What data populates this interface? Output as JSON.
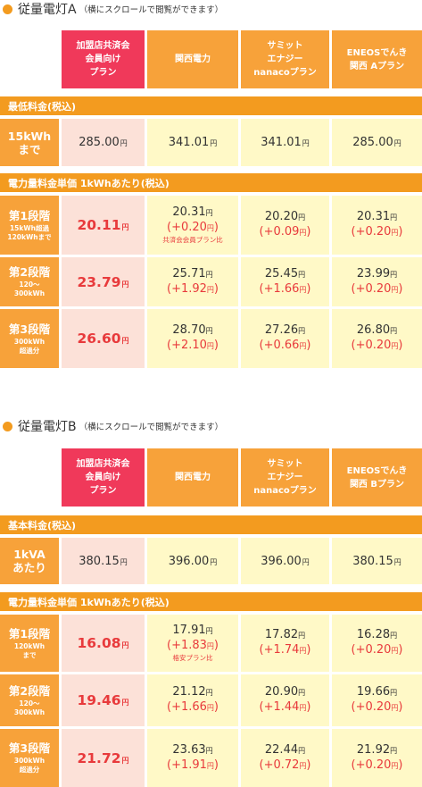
{
  "colors": {
    "accent_orange": "#f39b1f",
    "header_orange": "#f7a23a",
    "header_red": "#f0395a",
    "highlight_red": "#e83a3c",
    "pink_cell": "#fce1d8",
    "cream_cell": "#fff9c7"
  },
  "yen": "円",
  "sectionA": {
    "title": "従量電灯A",
    "note": "（横にスクロールで閲覧ができます）",
    "headers": [
      "加盟店共済会\n会員向け\nプラン",
      "関西電力",
      "サミット\nエナジー\nnanacoプラン",
      "ENEOSでんき\n関西 Aプラン"
    ],
    "base_bar": "最低料金(税込)",
    "base_row": {
      "label": "15kWh\nまで",
      "values": [
        "285.00",
        "341.01",
        "341.01",
        "285.00"
      ]
    },
    "unit_bar": "電力量料金単価 1kWhあたり(税込)",
    "tiers": [
      {
        "label": "第1段階",
        "sub": "15kWh超過\n120kWhまで",
        "main": "20.11",
        "others": [
          {
            "v": "20.31",
            "d": "(+0.20",
            "d_end": ")",
            "cap": "共済会会員プラン比"
          },
          {
            "v": "20.20",
            "d": "(+0.09",
            "d_end": ")",
            "cap": ""
          },
          {
            "v": "20.31",
            "d": "(+0.20",
            "d_end": ")",
            "cap": ""
          }
        ]
      },
      {
        "label": "第2段階",
        "sub": "120～\n300kWh",
        "main": "23.79",
        "others": [
          {
            "v": "25.71",
            "d": "(+1.92",
            "d_end": ")",
            "cap": ""
          },
          {
            "v": "25.45",
            "d": "(+1.66",
            "d_end": ")",
            "cap": ""
          },
          {
            "v": "23.99",
            "d": "(+0.20",
            "d_end": ")",
            "cap": ""
          }
        ]
      },
      {
        "label": "第3段階",
        "sub": "300kWh\n超過分",
        "main": "26.60",
        "others": [
          {
            "v": "28.70",
            "d": "(+2.10",
            "d_end": ")",
            "cap": ""
          },
          {
            "v": "27.26",
            "d": "(+0.66",
            "d_end": ")",
            "cap": ""
          },
          {
            "v": "26.80",
            "d": "(+0.20",
            "d_end": ")",
            "cap": ""
          }
        ]
      }
    ]
  },
  "sectionB": {
    "title": "従量電灯B",
    "note": "（横にスクロールで閲覧ができます）",
    "headers": [
      "加盟店共済会\n会員向け\nプラン",
      "関西電力",
      "サミット\nエナジー\nnanacoプラン",
      "ENEOSでんき\n関西 Bプラン"
    ],
    "base_bar": "基本料金(税込)",
    "base_row": {
      "label": "1kVA\nあたり",
      "values": [
        "380.15",
        "396.00",
        "396.00",
        "380.15"
      ]
    },
    "unit_bar": "電力量料金単価 1kWhあたり(税込)",
    "tiers": [
      {
        "label": "第1段階",
        "sub": "120kWh\nまで",
        "main": "16.08",
        "others": [
          {
            "v": "17.91",
            "d": "(+1.83",
            "d_end": ")",
            "cap": "格安プラン比"
          },
          {
            "v": "17.82",
            "d": "(+1.74",
            "d_end": ")",
            "cap": ""
          },
          {
            "v": "16.28",
            "d": "(+0.20",
            "d_end": ")",
            "cap": ""
          }
        ]
      },
      {
        "label": "第2段階",
        "sub": "120～\n300kWh",
        "main": "19.46",
        "others": [
          {
            "v": "21.12",
            "d": "(+1.66",
            "d_end": ")",
            "cap": ""
          },
          {
            "v": "20.90",
            "d": "(+1.44",
            "d_end": ")",
            "cap": ""
          },
          {
            "v": "19.66",
            "d": "(+0.20",
            "d_end": ")",
            "cap": ""
          }
        ]
      },
      {
        "label": "第3段階",
        "sub": "300kWh\n超過分",
        "main": "21.72",
        "others": [
          {
            "v": "23.63",
            "d": "(+1.91",
            "d_end": ")",
            "cap": ""
          },
          {
            "v": "22.44",
            "d": "(+0.72",
            "d_end": ")",
            "cap": ""
          },
          {
            "v": "21.92",
            "d": "(+0.20",
            "d_end": ")",
            "cap": ""
          }
        ]
      }
    ]
  }
}
